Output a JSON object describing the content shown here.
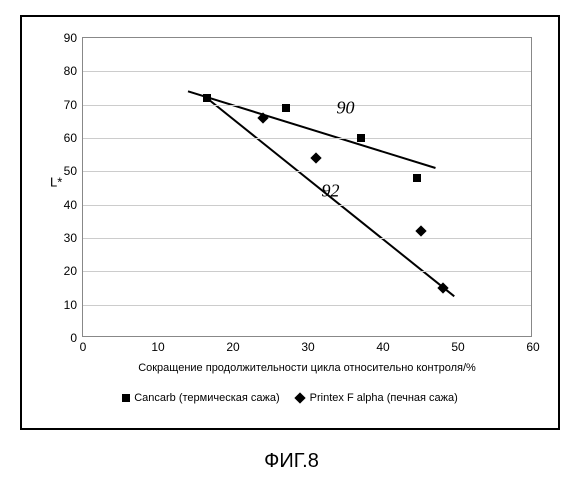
{
  "caption": "ФИГ.8",
  "chart": {
    "type": "scatter",
    "xlabel": "Сокращение продолжительности цикла относительно контроля/%",
    "ylabel": "L*",
    "xlim": [
      0,
      60
    ],
    "ylim": [
      0,
      90
    ],
    "xtick_step": 10,
    "ytick_step": 10,
    "background_color": "#ffffff",
    "grid_color": "#cccccc",
    "axis_color": "#888888",
    "tick_fontsize": 12,
    "label_fontsize": 12,
    "series": [
      {
        "name": "Cancarb",
        "note": "термическая сажа",
        "marker": "square",
        "color": "#000000",
        "points": [
          {
            "x": 16.5,
            "y": 72
          },
          {
            "x": 27,
            "y": 69
          },
          {
            "x": 37,
            "y": 60
          },
          {
            "x": 44.5,
            "y": 48
          }
        ],
        "trend": {
          "x1": 14,
          "y1": 74,
          "x2": 47,
          "y2": 51
        },
        "annotation": {
          "text": "90",
          "x": 35,
          "y": 69
        }
      },
      {
        "name": "Printex F alpha",
        "note": "печная сажа",
        "marker": "diamond",
        "color": "#000000",
        "points": [
          {
            "x": 24,
            "y": 66
          },
          {
            "x": 31,
            "y": 54
          },
          {
            "x": 45,
            "y": 32
          },
          {
            "x": 48,
            "y": 15
          }
        ],
        "trend": {
          "x1": 16.5,
          "y1": 72,
          "x2": 49.5,
          "y2": 12.5
        },
        "annotation": {
          "text": "92",
          "x": 33,
          "y": 44
        }
      }
    ]
  }
}
